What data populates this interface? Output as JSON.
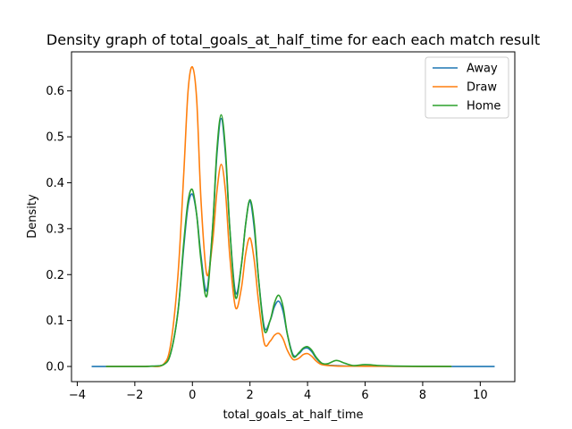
{
  "chart_data": {
    "type": "line",
    "title": "Density graph of total_goals_at_half_time for each each match result",
    "xlabel": "total_goals_at_half_time",
    "ylabel": "Density",
    "xlim": [
      -4.2,
      11.2
    ],
    "ylim": [
      -0.033,
      0.685
    ],
    "x_ticks": [
      -4,
      -2,
      0,
      2,
      4,
      6,
      8,
      10
    ],
    "x_tick_labels": [
      "−4",
      "−2",
      "0",
      "2",
      "4",
      "6",
      "8",
      "10"
    ],
    "y_ticks": [
      0.0,
      0.1,
      0.2,
      0.3,
      0.4,
      0.5,
      0.6
    ],
    "y_tick_labels": [
      "0.0",
      "0.1",
      "0.2",
      "0.3",
      "0.4",
      "0.5",
      "0.6"
    ],
    "grid": false,
    "legend_position": "top-right",
    "series": [
      {
        "name": "Away",
        "color": "#1f77b4",
        "x": [
          -3.5,
          -2,
          -1.5,
          -1,
          -0.75,
          -0.5,
          -0.3,
          -0.15,
          0,
          0.15,
          0.3,
          0.5,
          0.7,
          0.85,
          1,
          1.15,
          1.3,
          1.5,
          1.7,
          1.85,
          2,
          2.15,
          2.3,
          2.5,
          2.7,
          2.85,
          3,
          3.15,
          3.3,
          3.5,
          3.7,
          3.85,
          4,
          4.15,
          4.3,
          4.5,
          4.7,
          5,
          5.3,
          6,
          7,
          8,
          9,
          10.5
        ],
        "y": [
          0,
          0,
          0.0005,
          0.004,
          0.03,
          0.12,
          0.26,
          0.35,
          0.375,
          0.33,
          0.24,
          0.165,
          0.3,
          0.46,
          0.54,
          0.46,
          0.3,
          0.16,
          0.22,
          0.31,
          0.36,
          0.3,
          0.19,
          0.085,
          0.1,
          0.13,
          0.142,
          0.12,
          0.07,
          0.025,
          0.028,
          0.038,
          0.04,
          0.032,
          0.018,
          0.006,
          0.003,
          0.002,
          0.001,
          0.001,
          0.0005,
          0.0002,
          0,
          0
        ]
      },
      {
        "name": "Draw",
        "color": "#ff7f0e",
        "x": [
          -3,
          -2,
          -1.5,
          -1,
          -0.75,
          -0.5,
          -0.3,
          -0.15,
          0,
          0.15,
          0.3,
          0.5,
          0.7,
          0.85,
          1,
          1.15,
          1.3,
          1.5,
          1.7,
          1.85,
          2,
          2.15,
          2.3,
          2.5,
          2.7,
          2.85,
          3,
          3.15,
          3.3,
          3.5,
          3.7,
          3.85,
          4,
          4.15,
          4.3,
          4.5,
          5,
          6,
          7,
          8,
          9
        ],
        "y": [
          0,
          0,
          0.0005,
          0.005,
          0.05,
          0.2,
          0.42,
          0.6,
          0.652,
          0.58,
          0.36,
          0.2,
          0.27,
          0.38,
          0.44,
          0.38,
          0.24,
          0.128,
          0.17,
          0.245,
          0.28,
          0.23,
          0.14,
          0.05,
          0.055,
          0.068,
          0.072,
          0.06,
          0.035,
          0.015,
          0.018,
          0.026,
          0.028,
          0.022,
          0.012,
          0.004,
          0.001,
          0.0005,
          0.0002,
          0,
          0
        ]
      },
      {
        "name": "Home",
        "color": "#2ca02c",
        "x": [
          -3,
          -2,
          -1.5,
          -1,
          -0.75,
          -0.5,
          -0.3,
          -0.15,
          0,
          0.15,
          0.3,
          0.5,
          0.7,
          0.85,
          1,
          1.15,
          1.3,
          1.5,
          1.7,
          1.85,
          2,
          2.15,
          2.3,
          2.5,
          2.7,
          2.85,
          3,
          3.15,
          3.3,
          3.5,
          3.7,
          3.85,
          4,
          4.15,
          4.3,
          4.5,
          4.7,
          5,
          5.3,
          5.6,
          6,
          6.5,
          7,
          8,
          9
        ],
        "y": [
          0,
          0,
          0.0005,
          0.004,
          0.03,
          0.12,
          0.27,
          0.36,
          0.385,
          0.33,
          0.23,
          0.153,
          0.3,
          0.47,
          0.548,
          0.47,
          0.3,
          0.15,
          0.22,
          0.31,
          0.363,
          0.31,
          0.19,
          0.078,
          0.1,
          0.138,
          0.155,
          0.13,
          0.07,
          0.022,
          0.03,
          0.04,
          0.043,
          0.035,
          0.02,
          0.007,
          0.006,
          0.013,
          0.007,
          0.002,
          0.004,
          0.002,
          0.001,
          0.0003,
          0
        ]
      }
    ]
  }
}
